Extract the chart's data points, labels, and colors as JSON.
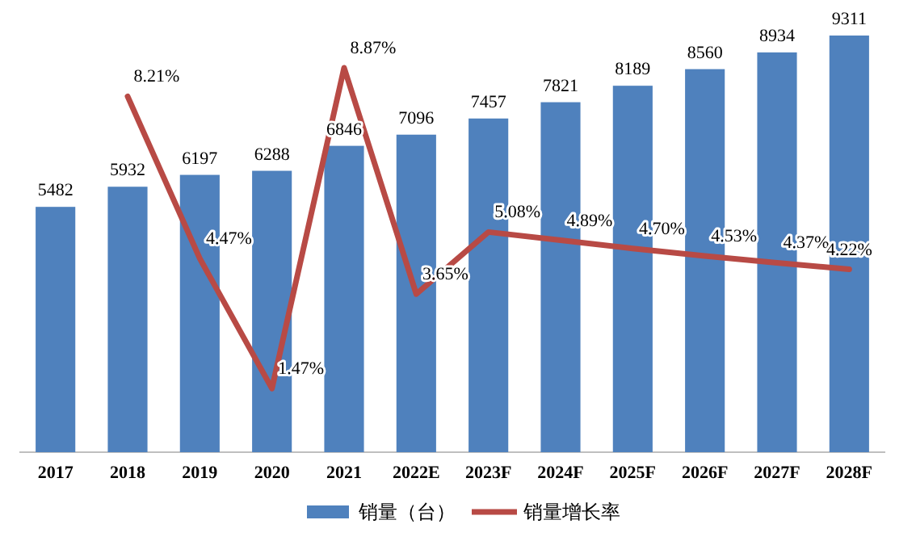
{
  "chart_data": {
    "type": "bar",
    "categories": [
      "2017",
      "2018",
      "2019",
      "2020",
      "2021",
      "2022E",
      "2023F",
      "2024F",
      "2025F",
      "2026F",
      "2027F",
      "2028F"
    ],
    "series": [
      {
        "name": "销量（台）",
        "color": "#4f81bd",
        "values": [
          5482,
          5932,
          6197,
          6288,
          6846,
          7096,
          7457,
          7821,
          8189,
          8560,
          8934,
          9311
        ],
        "value_labels": [
          "5482",
          "5932",
          "6197",
          "6288",
          "6846",
          "7096",
          "7457",
          "7821",
          "8189",
          "8560",
          "8934",
          "9311"
        ]
      },
      {
        "name": "销量增长率",
        "type": "line",
        "axis": "y2",
        "color": "#b84a45",
        "values": [
          null,
          8.21,
          4.47,
          1.47,
          8.87,
          3.65,
          5.08,
          4.89,
          4.7,
          4.53,
          4.37,
          4.22
        ],
        "value_labels": [
          null,
          "8.21%",
          "4.47%",
          "1.47%",
          "8.87%",
          "3.65%",
          "5.08%",
          "4.89%",
          "4.70%",
          "4.53%",
          "4.37%",
          "4.22%"
        ]
      }
    ],
    "tick_labels": "x",
    "legend": "bottom",
    "marker": "none"
  }
}
